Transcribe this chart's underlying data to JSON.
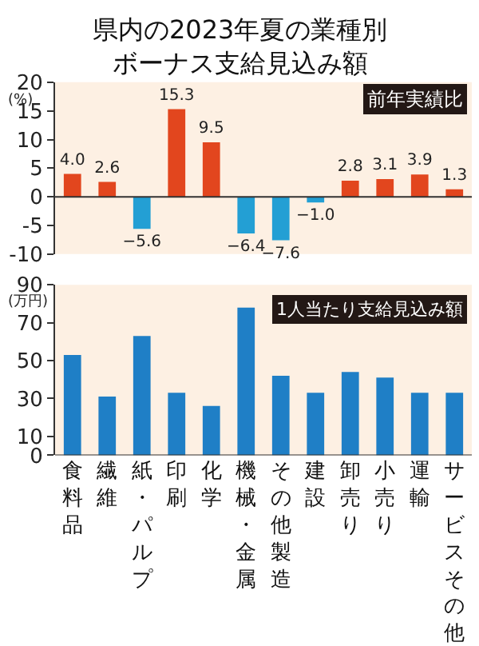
{
  "chart_data": [
    {
      "type": "bar",
      "title": "県内の2023年夏の業種別ボーナス支給見込み額",
      "ylabel": "(%)",
      "annotations": [
        "前年実績比"
      ],
      "categories": [
        "食料品",
        "繊維",
        "紙・パルプ",
        "印刷",
        "化学",
        "機械・金属",
        "その他製造",
        "建設",
        "卸売り",
        "小売り",
        "運輸",
        "サービスその他"
      ],
      "values": [
        4.0,
        2.6,
        -5.6,
        15.3,
        9.5,
        -6.4,
        -7.6,
        -1.0,
        2.8,
        3.1,
        3.9,
        1.3
      ],
      "colors": [
        "#e2461e",
        "#e2461e",
        "#239fd4",
        "#e2461e",
        "#e2461e",
        "#239fd4",
        "#239fd4",
        "#239fd4",
        "#e2461e",
        "#e2461e",
        "#e2461e",
        "#e2461e"
      ],
      "value_labels": [
        "4.0",
        "2.6",
        "−5.6",
        "15.3",
        "9.5",
        "−6.4",
        "−7.6",
        "−1.0",
        "2.8",
        "3.1",
        "3.9",
        "1.3"
      ],
      "ylim": [
        -10,
        20
      ],
      "yticks": [
        -10,
        -5,
        0,
        5,
        10,
        15,
        20
      ],
      "tick_labels": "y"
    },
    {
      "type": "bar",
      "ylabel": "(万円)",
      "annotations": [
        "1人当たり支給見込み額"
      ],
      "categories": [
        "食料品",
        "繊維",
        "紙・パルプ",
        "印刷",
        "化学",
        "機械・金属",
        "その他製造",
        "建設",
        "卸売り",
        "小売り",
        "運輸",
        "サービスその他"
      ],
      "values": [
        53,
        31,
        63,
        33,
        26,
        78,
        42,
        33,
        44,
        41,
        33,
        33
      ],
      "color": "#1f7fc6",
      "ylim": [
        0,
        90
      ],
      "yticks": [
        0,
        10,
        30,
        50,
        70,
        90
      ]
    }
  ]
}
